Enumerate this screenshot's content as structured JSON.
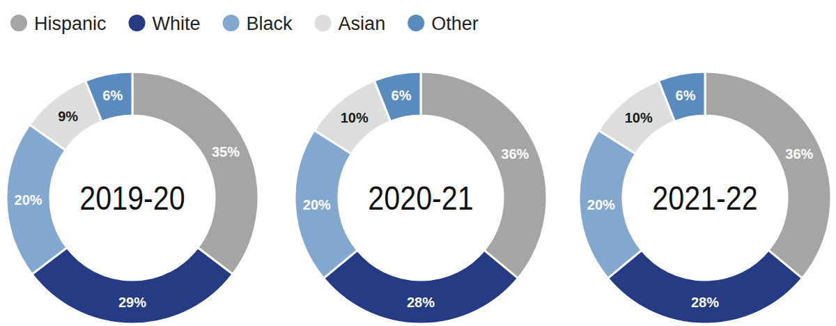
{
  "chart_data": [
    {
      "type": "pie",
      "title": "2019-20",
      "categories": [
        "Hispanic",
        "White",
        "Black",
        "Asian",
        "Other"
      ],
      "values": [
        35,
        29,
        20,
        9,
        6
      ],
      "value_labels": [
        "35%",
        "29%",
        "20%",
        "9%",
        "6%"
      ],
      "colors": [
        "#a5a5a5",
        "#253c84",
        "#82a8d0",
        "#dddddd",
        "#5a8bbf"
      ],
      "data_labels": true,
      "legend": "top"
    },
    {
      "type": "pie",
      "title": "2020-21",
      "categories": [
        "Hispanic",
        "White",
        "Black",
        "Asian",
        "Other"
      ],
      "values": [
        36,
        28,
        20,
        10,
        6
      ],
      "value_labels": [
        "36%",
        "28%",
        "20%",
        "10%",
        "6%"
      ],
      "colors": [
        "#a5a5a5",
        "#253c84",
        "#82a8d0",
        "#dddddd",
        "#5a8bbf"
      ],
      "data_labels": true
    },
    {
      "type": "pie",
      "title": "2021-22",
      "categories": [
        "Hispanic",
        "White",
        "Black",
        "Asian",
        "Other"
      ],
      "values": [
        36,
        28,
        20,
        10,
        6
      ],
      "value_labels": [
        "36%",
        "28%",
        "20%",
        "10%",
        "6%"
      ],
      "colors": [
        "#a5a5a5",
        "#253c84",
        "#82a8d0",
        "#dddddd",
        "#5a8bbf"
      ],
      "data_labels": true
    }
  ]
}
